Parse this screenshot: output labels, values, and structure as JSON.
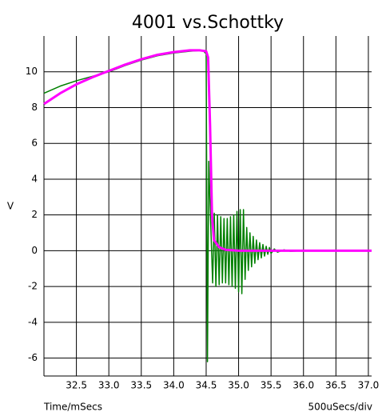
{
  "chart_data": {
    "type": "line",
    "title": "4001 vs.Schottky",
    "ylabel": "V",
    "xlabel": "Time/mSecs",
    "scale_note": "500uSecs/div",
    "xlim": [
      32.0,
      37.05
    ],
    "ylim": [
      -7,
      12
    ],
    "xticks": [
      {
        "value": 32.5,
        "label": "32.5"
      },
      {
        "value": 33,
        "label": "33.0"
      },
      {
        "value": 33.5,
        "label": "33.5"
      },
      {
        "value": 34,
        "label": "34.0"
      },
      {
        "value": 34.5,
        "label": "34.5"
      },
      {
        "value": 35,
        "label": "35.0"
      },
      {
        "value": 35.5,
        "label": "35.5"
      },
      {
        "value": 36,
        "label": "36.0"
      },
      {
        "value": 36.5,
        "label": "36.5"
      },
      {
        "value": 37,
        "label": "37.0"
      }
    ],
    "yticks": [
      -6,
      -4,
      -2,
      0,
      2,
      4,
      6,
      8,
      10
    ],
    "grid": true,
    "series": [
      {
        "color": "#008000",
        "width": 1.5,
        "x": [
          32.0,
          32.25,
          32.5,
          32.75,
          33.0,
          33.25,
          33.5,
          33.75,
          34.0,
          34.25,
          34.45,
          34.5,
          34.52,
          34.54,
          34.57,
          34.6,
          34.625,
          34.65,
          34.675,
          34.7,
          34.725,
          34.75,
          34.775,
          34.8,
          34.825,
          34.85,
          34.875,
          34.9,
          34.925,
          34.95,
          34.975,
          35.0,
          35.025,
          35.05,
          35.075,
          35.1,
          35.125,
          35.15,
          35.175,
          35.2,
          35.225,
          35.25,
          35.275,
          35.3,
          35.325,
          35.35,
          35.375,
          35.4,
          35.425,
          35.45,
          35.475,
          35.5,
          35.55,
          35.6,
          35.7,
          35.8,
          36.0,
          37.05
        ],
        "values": [
          8.8,
          9.2,
          9.5,
          9.75,
          10.0,
          10.35,
          10.65,
          10.9,
          11.05,
          11.15,
          11.2,
          11.0,
          -6.2,
          5,
          1.5,
          -1.8,
          2.1,
          -2.0,
          2.0,
          -1.9,
          1.9,
          -1.8,
          1.8,
          -1.8,
          1.8,
          -1.9,
          1.9,
          -2.0,
          2.0,
          -2.1,
          2.2,
          -2.3,
          2.3,
          -2.4,
          2.3,
          -1.6,
          1.3,
          -1.1,
          1.0,
          -0.9,
          0.8,
          -0.7,
          0.6,
          -0.5,
          0.45,
          -0.4,
          0.35,
          -0.3,
          0.25,
          -0.2,
          0.18,
          -0.15,
          0.1,
          -0.08,
          0.05,
          -0.03,
          0,
          0
        ]
      },
      {
        "color": "#ff00ff",
        "width": 3,
        "x": [
          32.0,
          32.25,
          32.5,
          32.75,
          33.0,
          33.25,
          33.5,
          33.75,
          34.0,
          34.25,
          34.4,
          34.5,
          34.53,
          34.56,
          34.59,
          34.62,
          34.7,
          34.8,
          35.0,
          37.05
        ],
        "values": [
          8.2,
          8.8,
          9.3,
          9.7,
          10.05,
          10.4,
          10.7,
          10.95,
          11.1,
          11.2,
          11.2,
          11.15,
          10.8,
          7,
          2,
          0.6,
          0.2,
          0.05,
          0,
          0
        ]
      }
    ]
  }
}
